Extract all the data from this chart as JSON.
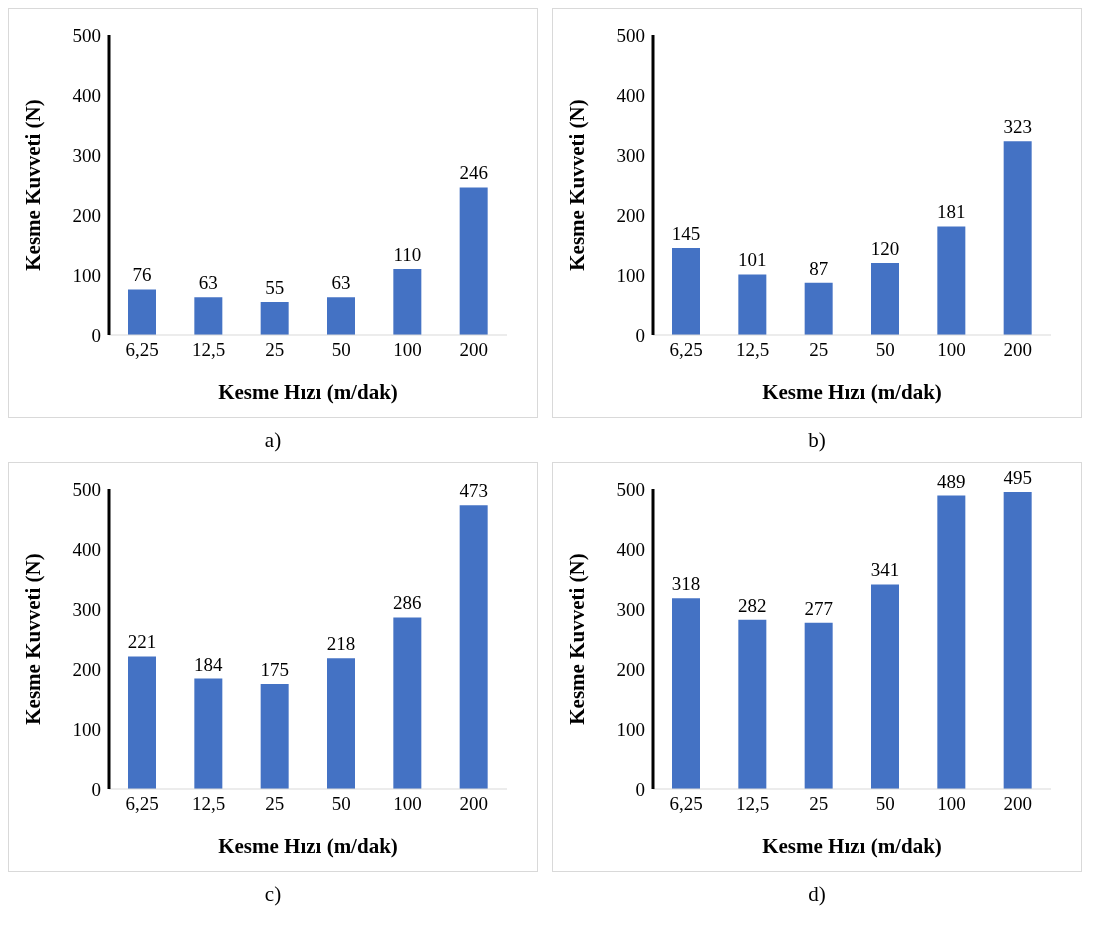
{
  "chart_data": [
    {
      "type": "bar",
      "categories": [
        "6,25",
        "12,5",
        "25",
        "50",
        "100",
        "200"
      ],
      "values": [
        76,
        63,
        55,
        63,
        110,
        246
      ],
      "color": "#4472c4",
      "xlabel": "Kesme Hızı (m/dak)",
      "ylabel": "Kesme Kuvveti (N)",
      "ylim": [
        0,
        500
      ],
      "yticks": [
        0,
        100,
        200,
        300,
        400,
        500
      ],
      "grid": false,
      "data_labels": true,
      "annotations": [
        "a)"
      ]
    },
    {
      "type": "bar",
      "categories": [
        "6,25",
        "12,5",
        "25",
        "50",
        "100",
        "200"
      ],
      "values": [
        145,
        101,
        87,
        120,
        181,
        323
      ],
      "color": "#4472c4",
      "xlabel": "Kesme Hızı (m/dak)",
      "ylabel": "Kesme Kuvveti (N)",
      "ylim": [
        0,
        500
      ],
      "yticks": [
        0,
        100,
        200,
        300,
        400,
        500
      ],
      "grid": false,
      "data_labels": true,
      "annotations": [
        "b)"
      ]
    },
    {
      "type": "bar",
      "categories": [
        "6,25",
        "12,5",
        "25",
        "50",
        "100",
        "200"
      ],
      "values": [
        221,
        184,
        175,
        218,
        286,
        473
      ],
      "color": "#4472c4",
      "xlabel": "Kesme Hızı (m/dak)",
      "ylabel": "Kesme Kuvveti (N)",
      "ylim": [
        0,
        500
      ],
      "yticks": [
        0,
        100,
        200,
        300,
        400,
        500
      ],
      "grid": false,
      "data_labels": true,
      "annotations": [
        "c)"
      ]
    },
    {
      "type": "bar",
      "categories": [
        "6,25",
        "12,5",
        "25",
        "50",
        "100",
        "200"
      ],
      "values": [
        318,
        282,
        277,
        341,
        489,
        495
      ],
      "color": "#4472c4",
      "xlabel": "Kesme Hızı (m/dak)",
      "ylabel": "Kesme Kuvveti (N)",
      "ylim": [
        0,
        500
      ],
      "yticks": [
        0,
        100,
        200,
        300,
        400,
        500
      ],
      "grid": false,
      "data_labels": true,
      "annotations": [
        "d)"
      ]
    }
  ]
}
